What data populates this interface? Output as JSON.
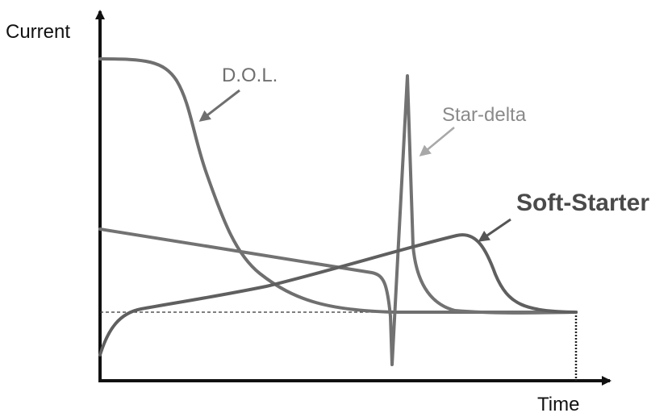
{
  "axes": {
    "y_label": "Current",
    "x_label": "Time"
  },
  "curves": [
    {
      "label": "D.O.L.",
      "color": "#6f6f6f",
      "arrow_color": "#6f6f6f"
    },
    {
      "label": "Star-delta",
      "color": "#727272",
      "arrow_color": "#a8a8a8",
      "label_color": "#8a8a8a"
    },
    {
      "label": "Soft-Starter",
      "color": "#5f5f5f",
      "arrow_color": "#555555",
      "label_color": "#4a4a4a"
    }
  ],
  "colors": {
    "axis": "#111111",
    "reference_line": "#333333"
  }
}
